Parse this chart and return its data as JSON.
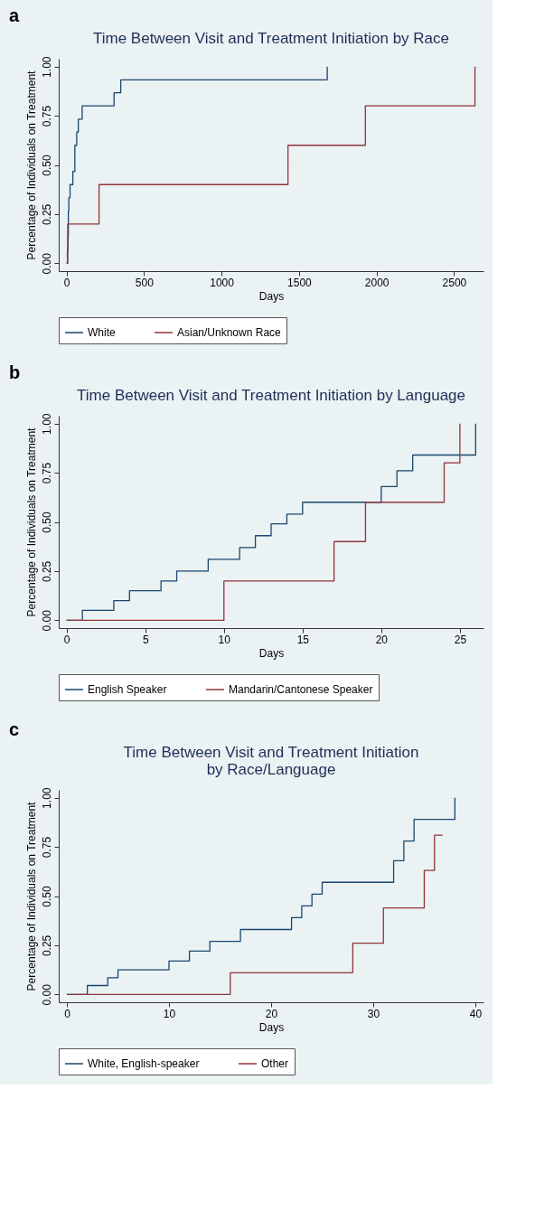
{
  "chart_data": [
    {
      "type": "step",
      "title": "Time Between Visit and Treatment Initiation by Race",
      "xlabel": "Days",
      "ylabel": "Percentage of Individuals on Treatment",
      "annotations": [
        "a"
      ],
      "xlim": [
        -50,
        2690
      ],
      "xticks": [
        0,
        500,
        1000,
        1500,
        2000,
        2500
      ],
      "ylim": [
        -0.04,
        1.04
      ],
      "yticks": [
        {
          "value": 0,
          "label": "0.00"
        },
        {
          "value": 0.25,
          "label": "0.25"
        },
        {
          "value": 0.5,
          "label": "0.50"
        },
        {
          "value": 0.75,
          "label": "0.75"
        },
        {
          "value": 1,
          "label": "1.00"
        }
      ],
      "grid": "y",
      "legend": "bottom",
      "series": [
        {
          "name": "White",
          "color": "#1a476f",
          "x": [
            0,
            6,
            10,
            12,
            15,
            23,
            41,
            54,
            66,
            76,
            101,
            307,
            350,
            1682
          ],
          "values": [
            0,
            0.067,
            0.133,
            0.267,
            0.333,
            0.4,
            0.467,
            0.6,
            0.667,
            0.733,
            0.8,
            0.867,
            0.933,
            1.0
          ]
        },
        {
          "name": "Asian/Unknown Race",
          "color": "#90353b",
          "x": [
            5,
            8,
            210,
            1429,
            1928,
            2635
          ],
          "values": [
            0,
            0.2,
            0.4,
            0.6,
            0.8,
            1.0
          ]
        }
      ]
    },
    {
      "type": "step",
      "title": "Time Between Visit and Treatment Initiation by Language",
      "xlabel": "Days",
      "ylabel": "Percentage of Individuals on Treatment",
      "annotations": [
        "b"
      ],
      "xlim": [
        -0.5,
        26.5
      ],
      "xticks": [
        0,
        5,
        10,
        15,
        20,
        25
      ],
      "ylim": [
        -0.04,
        1.04
      ],
      "yticks": [
        {
          "value": 0,
          "label": "0.00"
        },
        {
          "value": 0.25,
          "label": "0.25"
        },
        {
          "value": 0.5,
          "label": "0.50"
        },
        {
          "value": 0.75,
          "label": "0.75"
        },
        {
          "value": 1,
          "label": "1.00"
        }
      ],
      "grid": "y",
      "legend": "bottom",
      "series": [
        {
          "name": "English Speaker",
          "color": "#1a476f",
          "x": [
            0,
            1,
            3,
            4,
            6,
            7,
            9,
            11,
            12,
            13,
            14,
            15,
            20,
            21,
            22,
            26
          ],
          "values": [
            0,
            0.05,
            0.1,
            0.15,
            0.2,
            0.25,
            0.31,
            0.37,
            0.43,
            0.49,
            0.54,
            0.6,
            0.68,
            0.76,
            0.84,
            1.0
          ]
        },
        {
          "name": "Mandarin/Cantonese Speaker",
          "color": "#90353b",
          "x": [
            0,
            10,
            17,
            19,
            24,
            25
          ],
          "values": [
            0,
            0.2,
            0.4,
            0.6,
            0.8,
            1.0
          ]
        }
      ]
    },
    {
      "type": "step",
      "title": "Time Between Visit and Treatment Initiation\nby Race/Language",
      "xlabel": "Days",
      "ylabel": "Percentage of Individuals on Treatment",
      "annotations": [
        "c"
      ],
      "xlim": [
        -0.8,
        40.8
      ],
      "xticks": [
        0,
        10,
        20,
        30,
        40
      ],
      "ylim": [
        -0.04,
        1.04
      ],
      "yticks": [
        {
          "value": 0,
          "label": "0.00"
        },
        {
          "value": 0.25,
          "label": "0.25"
        },
        {
          "value": 0.5,
          "label": "0.50"
        },
        {
          "value": 0.75,
          "label": "0.75"
        },
        {
          "value": 1,
          "label": "1.00"
        }
      ],
      "grid": "y",
      "legend": "bottom",
      "series": [
        {
          "name": "White, English-speaker",
          "color": "#1a476f",
          "x": [
            0,
            2,
            4,
            5,
            10,
            12,
            14,
            17,
            22,
            23,
            24,
            25,
            32,
            33,
            34,
            38
          ],
          "values": [
            0,
            0.045,
            0.085,
            0.125,
            0.17,
            0.22,
            0.27,
            0.33,
            0.39,
            0.45,
            0.51,
            0.57,
            0.68,
            0.78,
            0.89,
            1.0
          ]
        },
        {
          "name": "Other",
          "color": "#90353b",
          "x": [
            0,
            16,
            28,
            31,
            35,
            36,
            36.8
          ],
          "values": [
            0,
            0.11,
            0.26,
            0.44,
            0.63,
            0.81,
            0.81
          ]
        }
      ]
    }
  ]
}
